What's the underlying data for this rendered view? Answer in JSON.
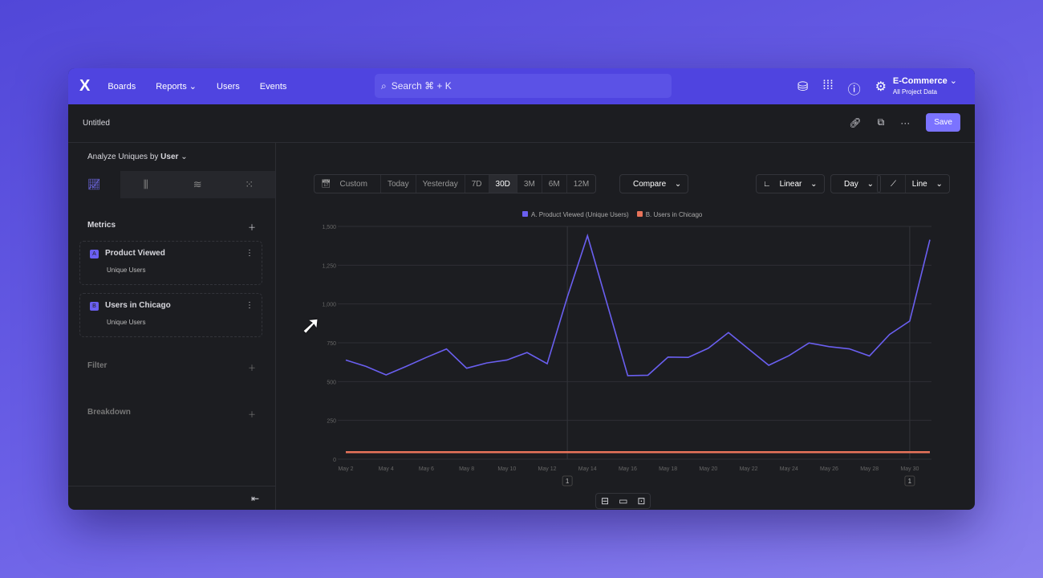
{
  "nav": {
    "logo": "X",
    "items": [
      "Boards",
      "Reports",
      "Users",
      "Events"
    ],
    "search": "Search  ⌘ + K",
    "project": "E-Commerce",
    "project_sub": "All Project Data"
  },
  "toolbar": {
    "title": "Untitled",
    "save": "Save"
  },
  "sidebar": {
    "analyze_label": "Analyze Uniques by",
    "analyze_value": "User",
    "metrics_label": "Metrics",
    "metrics": [
      {
        "badge": "A",
        "name": "Product Viewed",
        "sub": "Unique Users"
      },
      {
        "badge": "B",
        "name": "Users in Chicago",
        "sub": "Unique Users"
      }
    ],
    "filter": "Filter",
    "breakdown": "Breakdown"
  },
  "controls": {
    "range": [
      "Custom",
      "Today",
      "Yesterday",
      "7D",
      "30D",
      "3M",
      "6M",
      "12M"
    ],
    "selected": "30D",
    "compare": "Compare",
    "scale": "Linear",
    "interval": "Day",
    "chart_type": "Line"
  },
  "colors": {
    "accent": "#4f44e0",
    "series_a": "#6a5ff0",
    "series_b": "#e8735a"
  },
  "chart_data": {
    "type": "line",
    "ylim": [
      0,
      1500
    ],
    "yticks": [
      "0",
      "250",
      "500",
      "750",
      "1,000",
      "1,250",
      "1,500"
    ],
    "x": [
      "May 2",
      "May 3",
      "May 4",
      "May 5",
      "May 6",
      "May 7",
      "May 8",
      "May 9",
      "May 10",
      "May 11",
      "May 12",
      "May 13",
      "May 14",
      "May 15",
      "May 16",
      "May 17",
      "May 18",
      "May 19",
      "May 20",
      "May 21",
      "May 22",
      "May 23",
      "May 24",
      "May 25",
      "May 26",
      "May 27",
      "May 28",
      "May 29",
      "May 30",
      "May 31"
    ],
    "xticks": [
      "May 2",
      "May 4",
      "May 6",
      "May 8",
      "May 10",
      "May 12",
      "May 14",
      "May 16",
      "May 18",
      "May 20",
      "May 22",
      "May 24",
      "May 26",
      "May 28",
      "May 30"
    ],
    "series": [
      {
        "name": "A. Product Viewed (Unique Users)",
        "values": [
          639,
          598,
          543,
          598,
          656,
          710,
          586,
          620,
          639,
          687,
          615,
          1045,
          1440,
          990,
          538,
          541,
          658,
          656,
          715,
          816,
          710,
          605,
          667,
          749,
          725,
          711,
          665,
          804,
          890,
          1414
        ]
      },
      {
        "name": "B. Users in Chicago",
        "values": [
          45,
          45,
          45,
          45,
          45,
          45,
          45,
          45,
          45,
          45,
          45,
          45,
          45,
          45,
          45,
          45,
          45,
          45,
          45,
          45,
          45,
          45,
          45,
          45,
          45,
          45,
          45,
          45,
          45,
          45
        ]
      }
    ],
    "annotations": [
      {
        "x": "May 13",
        "label": "1"
      },
      {
        "x": "May 30",
        "label": "1"
      }
    ],
    "grid": true,
    "legend": "top"
  }
}
